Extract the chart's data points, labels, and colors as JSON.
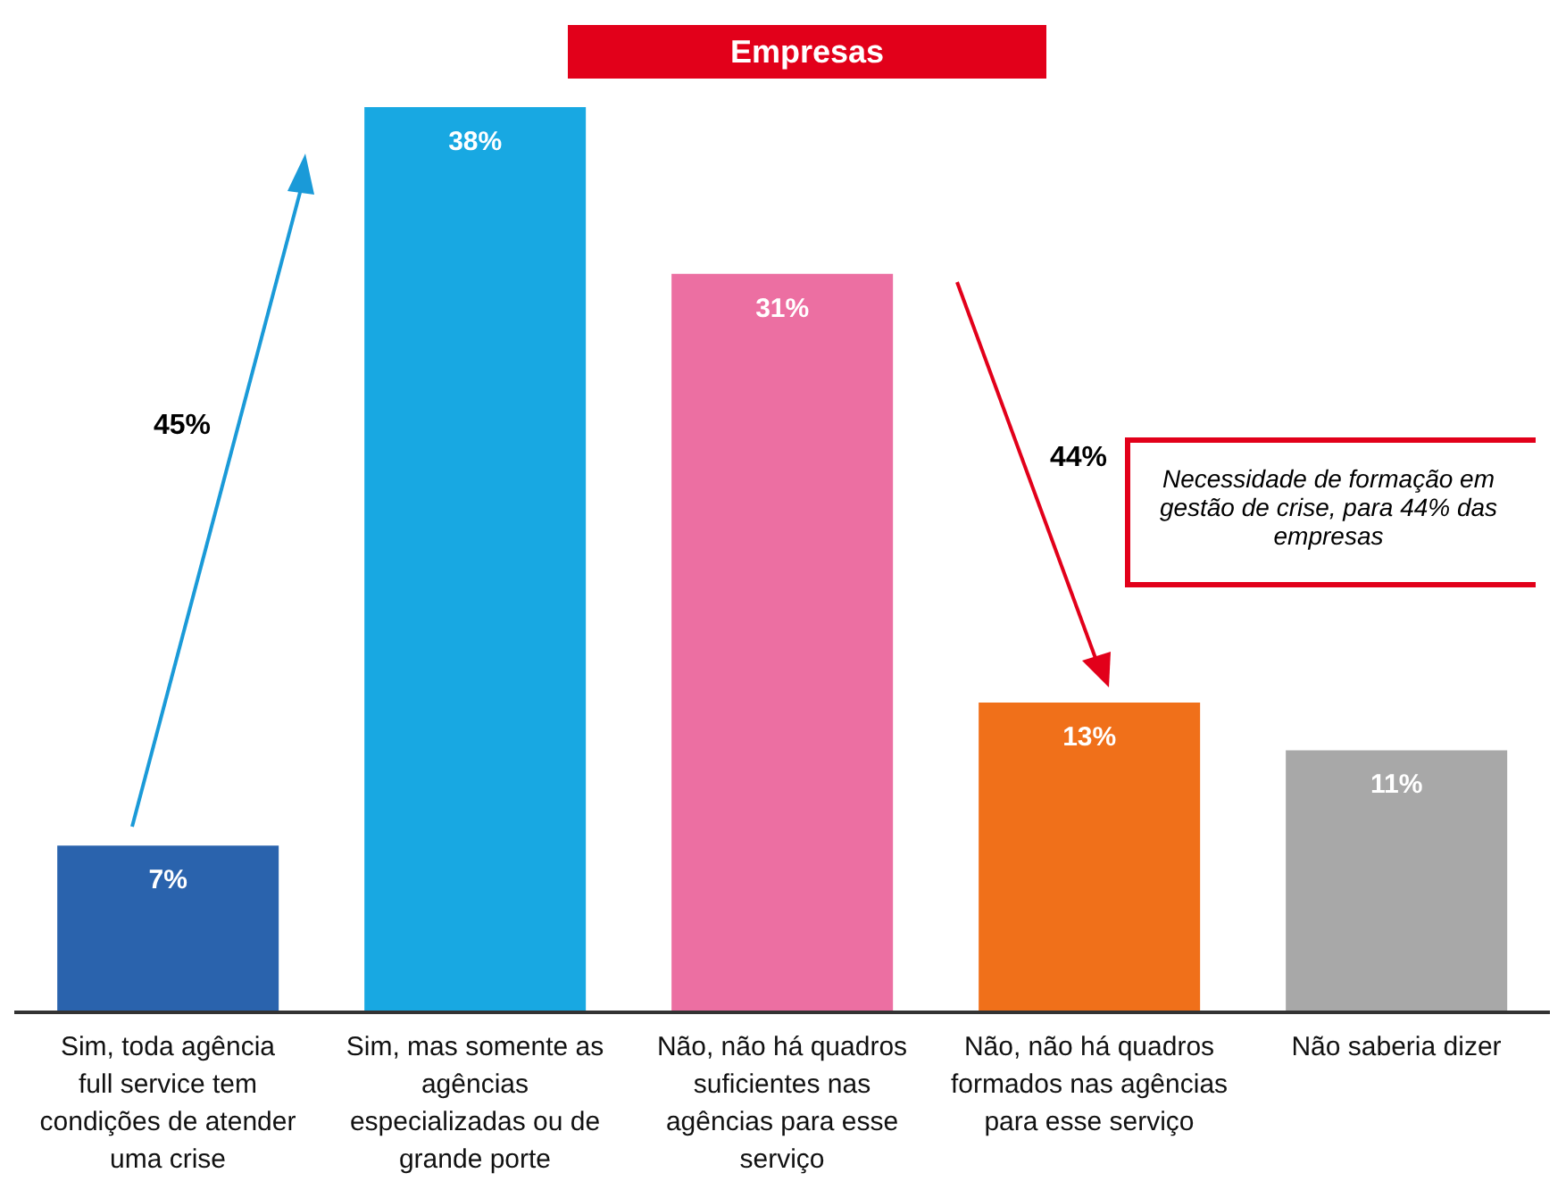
{
  "chart_data": {
    "type": "bar",
    "title": "Empresas",
    "categories": [
      "Sim, toda agência full service tem condições de atender uma crise",
      "Sim, mas somente as agências especializadas ou de grande porte",
      "Não, não há quadros suficientes nas agências para esse serviço",
      "Não, não há quadros formados nas agências para esse serviço",
      "Não saberia dizer"
    ],
    "values": [
      7,
      38,
      31,
      13,
      11
    ],
    "colors": [
      "#2a63ad",
      "#18a8e2",
      "#ec6fa2",
      "#f0701a",
      "#a8a8a8"
    ],
    "data_labels": true,
    "value_labels": [
      "7%",
      "38%",
      "31%",
      "13%",
      "11%"
    ],
    "annotations": [
      "45%",
      "44%",
      "Necessidade de formação em gestão de crise, para 44% das empresas"
    ]
  }
}
